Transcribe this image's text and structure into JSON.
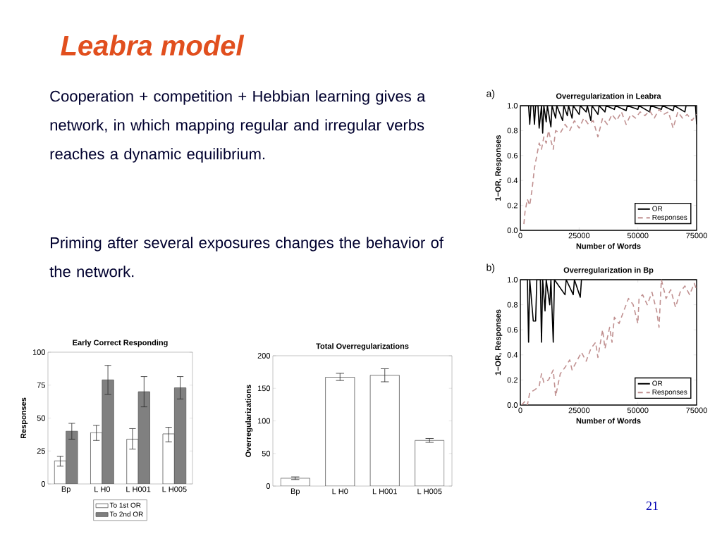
{
  "chart_data": [
    {
      "type": "other",
      "title": "Leabra model",
      "annotations": [
        "Cooperation + competition + Hebbian learning gives a network, in which mapping regular and irregular verbs reaches a dynamic equilibrium.",
        "Priming after several exposures changes the behavior of the network.",
        "21"
      ]
    },
    {
      "type": "line",
      "title": "Overregularization in Leabra",
      "annotations": [
        "a)"
      ],
      "xlabel": "Number of Words",
      "ylabel": "1−OR, Responses",
      "xlim": [
        0,
        75000
      ],
      "ylim": [
        0,
        1
      ],
      "xticks": [
        0,
        25000,
        50000,
        75000
      ],
      "yticks": [
        {
          "value": 0,
          "label": "0.0"
        },
        {
          "value": 0.2,
          "label": "0.2"
        },
        {
          "value": 0.4,
          "label": "0.4"
        },
        {
          "value": 0.6,
          "label": "0.6"
        },
        {
          "value": 0.8,
          "label": "0.8"
        },
        {
          "value": 1,
          "label": "1.0"
        }
      ],
      "legend": "bottom right",
      "series": [
        {
          "name": "OR",
          "color": "#000000",
          "line_style": "solid",
          "x": [
            0,
            3500,
            4000,
            4500,
            5500,
            6000,
            6500,
            7500,
            8000,
            9000,
            9500,
            10000,
            11000,
            11500,
            13000,
            13500,
            15000,
            15500,
            18000,
            18500,
            20000,
            20500,
            22000,
            22500,
            25000,
            25500,
            28000,
            28500,
            30000,
            30500,
            33000,
            33500,
            36000,
            36500,
            40000,
            40500,
            45000,
            45500,
            50000,
            50500,
            55000,
            55500,
            60000,
            60500,
            65000,
            65500,
            70000,
            70500,
            74500,
            75000
          ],
          "values": [
            1,
            1,
            0.85,
            1,
            1,
            0.85,
            1,
            1,
            0.82,
            1,
            0.78,
            1,
            0.87,
            1,
            0.83,
            1,
            0.9,
            1,
            0.88,
            1,
            0.92,
            1,
            0.9,
            1,
            0.93,
            1,
            0.95,
            1,
            0.88,
            1,
            0.93,
            1,
            0.95,
            1,
            0.97,
            1,
            0.96,
            1,
            0.97,
            1,
            0.95,
            1,
            0.97,
            1,
            0.96,
            1,
            0.95,
            1,
            1,
            0.85
          ]
        },
        {
          "name": "Responses",
          "color": "#c09090",
          "line_style": "dashed",
          "x": [
            1500,
            2000,
            3000,
            4000,
            5000,
            6000,
            7000,
            8000,
            9000,
            10000,
            11000,
            12000,
            13000,
            14000,
            15000,
            17000,
            19000,
            21000,
            23000,
            25000,
            27000,
            29000,
            31000,
            33000,
            35000,
            37000,
            39000,
            41000,
            43000,
            45000,
            47000,
            49000,
            51000,
            53000,
            55000,
            57000,
            59000,
            61000,
            63000,
            65000,
            67000,
            69000,
            71000,
            73000,
            75000
          ],
          "values": [
            0.05,
            0.15,
            0.25,
            0.2,
            0.33,
            0.5,
            0.6,
            0.7,
            0.65,
            0.75,
            0.7,
            0.8,
            0.72,
            0.65,
            0.8,
            0.78,
            0.85,
            0.8,
            0.88,
            0.82,
            0.9,
            0.85,
            0.88,
            0.75,
            0.9,
            0.85,
            0.93,
            0.88,
            0.95,
            0.85,
            0.93,
            0.9,
            0.95,
            0.92,
            0.96,
            0.9,
            0.97,
            0.93,
            0.95,
            0.82,
            0.95,
            0.9,
            0.93,
            0.88,
            0.93
          ]
        }
      ]
    },
    {
      "type": "line",
      "title": "Overregularization in Bp",
      "annotations": [
        "b)"
      ],
      "xlabel": "Number of Words",
      "ylabel": "1−OR, Responses",
      "xlim": [
        0,
        75000
      ],
      "ylim": [
        0,
        1
      ],
      "xticks": [
        0,
        25000,
        50000,
        75000
      ],
      "yticks": [
        {
          "value": 0,
          "label": "0.0"
        },
        {
          "value": 0.2,
          "label": "0.2"
        },
        {
          "value": 0.4,
          "label": "0.4"
        },
        {
          "value": 0.6,
          "label": "0.6"
        },
        {
          "value": 0.8,
          "label": "0.8"
        },
        {
          "value": 1,
          "label": "1.0"
        }
      ],
      "legend": "bottom right",
      "series": [
        {
          "name": "OR",
          "color": "#000000",
          "line_style": "solid",
          "x": [
            0,
            3000,
            3500,
            4000,
            5500,
            6500,
            7000,
            8500,
            9000,
            9500,
            10500,
            11000,
            12500,
            13000,
            14000,
            14500,
            19000,
            19500,
            22500,
            23000,
            25500,
            26000,
            75000
          ],
          "values": [
            1,
            1,
            0.5,
            1,
            0.67,
            0.67,
            1,
            1,
            0.5,
            1,
            0.75,
            1,
            0.8,
            1,
            0.5,
            1,
            0.88,
            1,
            0.88,
            1,
            0.86,
            1,
            1
          ]
        },
        {
          "name": "Responses",
          "color": "#c09090",
          "line_style": "dashed",
          "x": [
            500,
            2000,
            3000,
            4000,
            6000,
            8000,
            9000,
            10000,
            12000,
            14000,
            15000,
            17000,
            19000,
            21000,
            22000,
            24000,
            26000,
            28000,
            30000,
            32000,
            33000,
            35000,
            36000,
            38000,
            39000,
            40000,
            42000,
            44000,
            46000,
            48000,
            50000,
            50500,
            52000,
            54000,
            56000,
            58000,
            59000,
            60000,
            62000,
            64000,
            66000,
            68000,
            70000,
            72000,
            74000,
            75000
          ],
          "values": [
            0,
            0.03,
            0,
            0.1,
            0.12,
            0.15,
            0.25,
            0.18,
            0.2,
            0.28,
            0.07,
            0.25,
            0.3,
            0.36,
            0.28,
            0.35,
            0.42,
            0.35,
            0.45,
            0.5,
            0.38,
            0.6,
            0.45,
            0.62,
            0.5,
            0.7,
            0.65,
            0.75,
            0.85,
            0.8,
            0.65,
            0.85,
            0.88,
            0.8,
            0.9,
            0.75,
            0.62,
            1,
            0.85,
            0.92,
            0.78,
            0.9,
            0.95,
            0.88,
            0.97,
            0.92
          ]
        }
      ]
    },
    {
      "type": "bar",
      "title": "Early Correct Responding",
      "ylabel": "Responses",
      "categories": [
        "Bp",
        "L H0",
        "L H001",
        "L H005"
      ],
      "ylim": [
        0,
        100
      ],
      "yticks": [
        0,
        25,
        50,
        75,
        100
      ],
      "legend": "bottom",
      "series": [
        {
          "name": "To 1st OR",
          "color": "#ffffff",
          "values": [
            17.5,
            39,
            34,
            38
          ],
          "errors": [
            [
              13.5,
              21
            ],
            [
              33,
              44.5
            ],
            [
              26.5,
              42
            ],
            [
              32,
              43
            ]
          ]
        },
        {
          "name": "To 2nd OR",
          "color": "#808080",
          "values": [
            40,
            79,
            70,
            73
          ],
          "errors": [
            [
              34,
              46
            ],
            [
              68,
              90
            ],
            [
              58.5,
              81.5
            ],
            [
              64.5,
              81.5
            ]
          ]
        }
      ]
    },
    {
      "type": "bar",
      "title": "Total Overregularizations",
      "ylabel": "Overregularizations",
      "categories": [
        "Bp",
        "L H0",
        "L H001",
        "L H005"
      ],
      "ylim": [
        0,
        200
      ],
      "yticks": [
        0,
        50,
        100,
        150,
        200
      ],
      "color": "#ffffff",
      "values": [
        12,
        167,
        170,
        70
      ],
      "errors": [
        [
          10,
          14
        ],
        [
          162,
          173
        ],
        [
          160,
          180
        ],
        [
          67,
          73
        ]
      ]
    }
  ]
}
